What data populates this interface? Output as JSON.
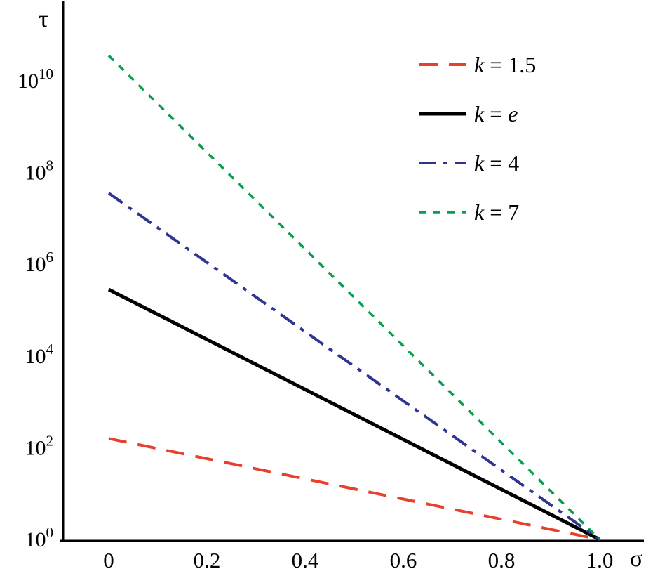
{
  "figure": {
    "background": "#ffffff"
  },
  "chart_data": {
    "type": "line",
    "title": "",
    "xlabel": "σ",
    "ylabel": "τ",
    "x_axis": {
      "ticks": [
        0,
        0.2,
        0.4,
        0.6,
        0.8,
        1.0
      ],
      "tick_labels": [
        "0",
        "0.2",
        "0.4",
        "0.6",
        "0.8",
        "1.0"
      ],
      "range": [
        0,
        1.0
      ]
    },
    "y_axis": {
      "scale": "log",
      "tick_exponents": [
        0,
        2,
        4,
        6,
        8,
        10
      ],
      "tick_label_base": "10",
      "range_log10": [
        0,
        10.8
      ]
    },
    "grid": false,
    "legend": {
      "position": "top-right",
      "boxed": false
    },
    "series": [
      {
        "name": "k = 1.5",
        "label_var": "k",
        "label_value": "1.5",
        "value_italic": false,
        "color": "#e8402c",
        "dash": "26 16",
        "width": 4,
        "points": [
          {
            "x": 0,
            "log10y": 2.2
          },
          {
            "x": 1.0,
            "log10y": 0
          }
        ]
      },
      {
        "name": "k = e",
        "label_var": "k",
        "label_value": "e",
        "value_italic": true,
        "color": "#000000",
        "dash": "",
        "width": 5,
        "points": [
          {
            "x": 0,
            "log10y": 5.45
          },
          {
            "x": 1.0,
            "log10y": 0
          }
        ]
      },
      {
        "name": "k = 4",
        "label_var": "k",
        "label_value": "4",
        "value_italic": false,
        "color": "#2f3590",
        "dash": "24 10 6 10",
        "width": 4,
        "points": [
          {
            "x": 0,
            "log10y": 7.55
          },
          {
            "x": 1.0,
            "log10y": 0
          }
        ]
      },
      {
        "name": "k = 7",
        "label_var": "k",
        "label_value": "7",
        "value_italic": false,
        "color": "#089e4e",
        "dash": "10 10",
        "width": 3.5,
        "points": [
          {
            "x": 0,
            "log10y": 10.55
          },
          {
            "x": 1.0,
            "log10y": 0
          }
        ]
      }
    ]
  }
}
